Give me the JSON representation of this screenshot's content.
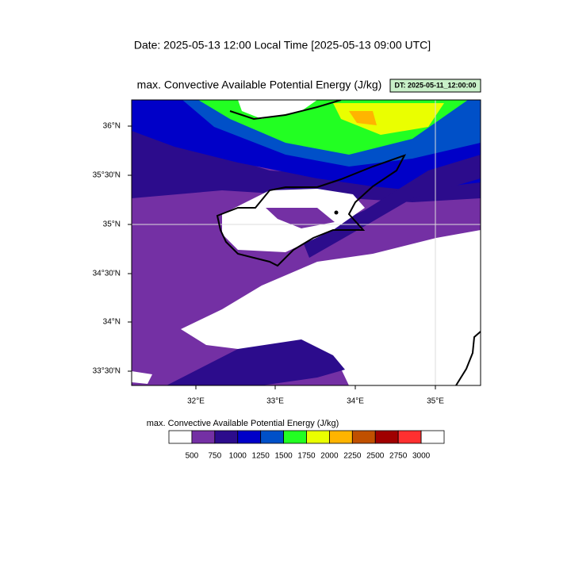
{
  "header": {
    "title": "Date: 2025-05-13  12:00 Local Time [2025-05-13  09:00 UTC]"
  },
  "map": {
    "title": "max. Convective Available Potential Energy   (J/kg)",
    "badge": "DT: 2025-05-11_12:00:00",
    "lat_labels": [
      "36°N",
      "35°30'N",
      "35°N",
      "34°30'N",
      "34°N",
      "33°30'N"
    ],
    "lon_labels": [
      "32°E",
      "33°E",
      "34°E",
      "35°E"
    ]
  },
  "colorbar": {
    "title": "max. Convective Available Potential Energy  (J/kg)",
    "levels": [
      500,
      750,
      1000,
      1250,
      1500,
      1750,
      2000,
      2250,
      2500,
      2750,
      3000
    ],
    "colors": [
      "#ffffff",
      "#7430a4",
      "#2c0c8c",
      "#0000c8",
      "#0050c8",
      "#22ff22",
      "#eaff00",
      "#ffb400",
      "#c05000",
      "#a00000",
      "#ff3030",
      "#ffffff"
    ]
  }
}
